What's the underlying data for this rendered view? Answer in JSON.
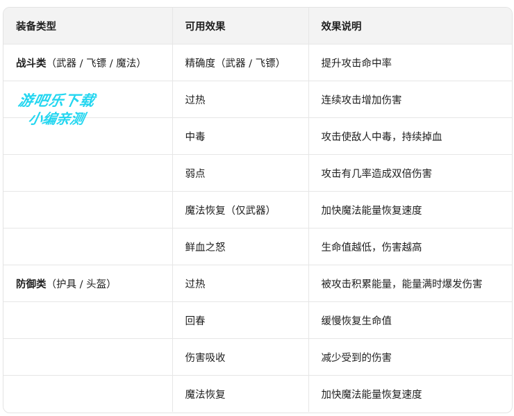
{
  "table": {
    "headers": [
      "装备类型",
      "可用效果",
      "效果说明"
    ],
    "rows": [
      {
        "category": "战斗类",
        "category_note": "（武器 / 飞镖 / 魔法）",
        "effect": "精确度（武器 / 飞镖）",
        "description": "提升攻击命中率"
      },
      {
        "category": "",
        "category_note": "",
        "effect": "过热",
        "description": "连续攻击增加伤害"
      },
      {
        "category": "",
        "category_note": "",
        "effect": "中毒",
        "description": "攻击使敌人中毒，持续掉血"
      },
      {
        "category": "",
        "category_note": "",
        "effect": "弱点",
        "description": "攻击有几率造成双倍伤害"
      },
      {
        "category": "",
        "category_note": "",
        "effect": "魔法恢复（仅武器）",
        "description": "加快魔法能量恢复速度"
      },
      {
        "category": "",
        "category_note": "",
        "effect": "鲜血之怒",
        "description": "生命值越低，伤害越高"
      },
      {
        "category": "防御类",
        "category_note": "（护具 / 头盔）",
        "effect": "过热",
        "description": "被攻击积累能量，能量满时爆发伤害"
      },
      {
        "category": "",
        "category_note": "",
        "effect": "回春",
        "description": "缓慢恢复生命值"
      },
      {
        "category": "",
        "category_note": "",
        "effect": "伤害吸收",
        "description": "减少受到的伤害"
      },
      {
        "category": "",
        "category_note": "",
        "effect": "魔法恢复",
        "description": "加快魔法能量恢复速度"
      }
    ]
  },
  "watermark": {
    "line1": "游吧乐下载",
    "line2": "小编亲测",
    "color": "#23d6f0"
  }
}
